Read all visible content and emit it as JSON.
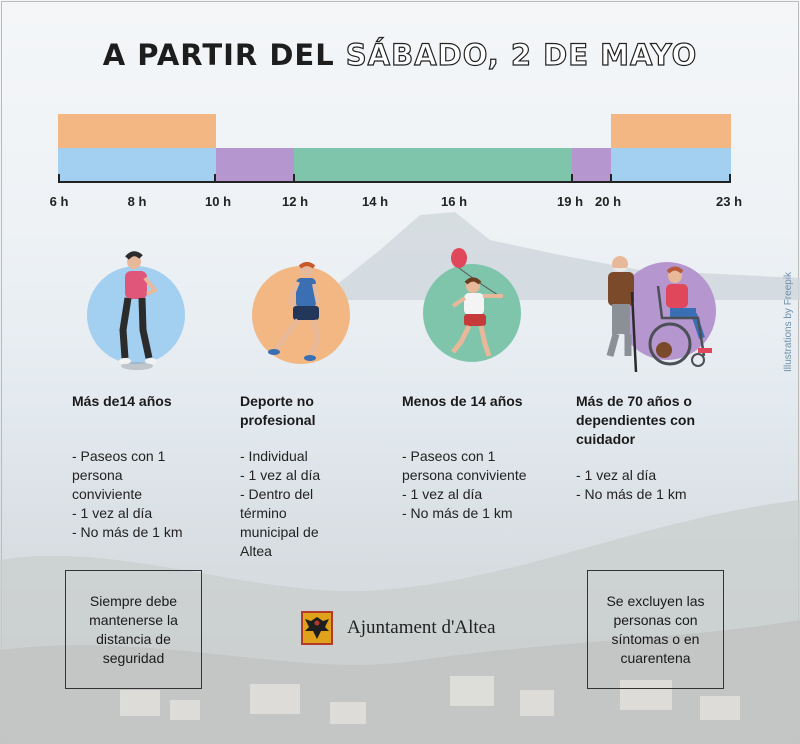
{
  "header": {
    "title_part1": "A PARTIR DEL",
    "title_part2": "SÁBADO, 2 DE MAYO"
  },
  "timeline": {
    "hours": [
      "6 h",
      "8 h",
      "10 h",
      "12 h",
      "14 h",
      "16 h",
      "19 h",
      "20 h",
      "23 h"
    ],
    "colors": {
      "adults": "#a3cff1",
      "elderly": "#f3b784",
      "children": "#b596cf",
      "sport": "#7ec5ac"
    }
  },
  "groups": [
    {
      "title": "Más de14 años",
      "rules": [
        "- Paseos con 1",
        "persona",
        "conviviente",
        "- 1 vez al día",
        "- No más de 1 km"
      ]
    },
    {
      "title": "Deporte no profesional",
      "rules": [
        "- Individual",
        "- 1 vez al día",
        "- Dentro del",
        "término",
        "municipal de",
        "Altea"
      ]
    },
    {
      "title": "Menos de 14 años",
      "rules": [
        "- Paseos con 1",
        "persona conviviente",
        "- 1 vez al día",
        "- No más de 1 km"
      ]
    },
    {
      "title": "Más de 70 años o dependientes con cuidador",
      "rules": [
        "- 1 vez al día",
        "- No más de 1 km"
      ]
    }
  ],
  "notices": {
    "left": "Siempre debe mantenerse la distancia de seguridad",
    "right": "Se excluyen las personas con síntomas o en cuarentena"
  },
  "logo": {
    "name": "Ajuntament d'Altea"
  },
  "credit": "Illustrations by Freepik"
}
